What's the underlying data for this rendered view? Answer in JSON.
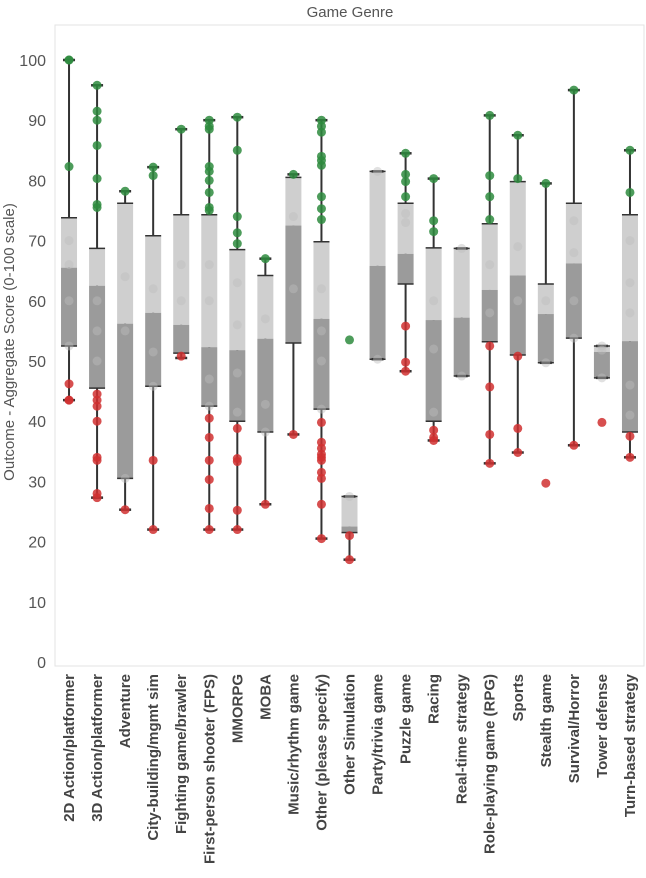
{
  "chart_data": {
    "type": "boxplot",
    "title": "Game Genre",
    "ylabel": "Outcome - Aggregate Score (0-100 scale)",
    "xlabel": "",
    "ylim": [
      -1,
      105
    ],
    "yticks": [
      0,
      10,
      20,
      30,
      40,
      50,
      60,
      70,
      80,
      90,
      100
    ],
    "grid": false,
    "colors": {
      "box_lower": "#9b9b9b",
      "box_upper": "#cfcfcf",
      "whisker": "#333333",
      "point_high": "#2e8b3e",
      "point_low": "#d03030",
      "point_mid": "#bdbdbd"
    },
    "categories": [
      {
        "label": "2D Action/platformer",
        "min": 43.5,
        "q1": 52.5,
        "median": 65.5,
        "q3": 73.8,
        "max": 100,
        "points": [
          100,
          100,
          82.3,
          52.5,
          46.2,
          43.5,
          43.5,
          66,
          60,
          70
        ]
      },
      {
        "label": "3D Action/platformer",
        "min": 27.3,
        "q1": 45.5,
        "median": 62.5,
        "q3": 68.7,
        "max": 95.8,
        "points": [
          95.8,
          91.5,
          90,
          85.8,
          80.3,
          76,
          75.5,
          44.5,
          43.5,
          42.5,
          40,
          34,
          33.5,
          28,
          27.3,
          55,
          60,
          50
        ]
      },
      {
        "label": "Adventure",
        "min": 25.3,
        "q1": 30.5,
        "median": 56.2,
        "q3": 76.2,
        "max": 78.2,
        "points": [
          78.2,
          30.5,
          25.3,
          64,
          55
        ]
      },
      {
        "label": "City-building/mgmt sim",
        "min": 22,
        "q1": 45.8,
        "median": 58,
        "q3": 70.8,
        "max": 82.2,
        "points": [
          82.2,
          80.8,
          45.8,
          33.5,
          22,
          62,
          51.5
        ]
      },
      {
        "label": "Fighting game/brawler",
        "min": 50.5,
        "q1": 51.3,
        "median": 56,
        "q3": 74.3,
        "max": 88.5,
        "points": [
          88.5,
          50.8,
          60,
          66
        ]
      },
      {
        "label": "First-person shooter (FPS)",
        "min": 22,
        "q1": 42.5,
        "median": 52.3,
        "q3": 74.3,
        "max": 90,
        "points": [
          90,
          89,
          88.5,
          82.3,
          81.5,
          80,
          78,
          75.5,
          75,
          42.5,
          40.5,
          37.3,
          33.5,
          30.3,
          25.5,
          22,
          47,
          60,
          66
        ]
      },
      {
        "label": "MMORPG",
        "min": 22,
        "q1": 40,
        "median": 51.8,
        "q3": 68.5,
        "max": 90.5,
        "points": [
          90.5,
          85,
          74,
          71.3,
          69.5,
          41.5,
          38.8,
          33.8,
          33.3,
          25.2,
          22,
          48,
          56,
          63
        ]
      },
      {
        "label": "MOBA",
        "min": 26.2,
        "q1": 38.2,
        "median": 53.7,
        "q3": 64.2,
        "max": 67,
        "points": [
          67,
          42.8,
          38.2,
          26.2,
          57
        ]
      },
      {
        "label": "Music/rhythm game",
        "min": 37.8,
        "q1": 53,
        "median": 72.5,
        "q3": 80.5,
        "max": 81,
        "points": [
          81,
          37.8,
          62,
          74
        ]
      },
      {
        "label": "Other (please specify)",
        "min": 20.5,
        "q1": 42,
        "median": 57,
        "q3": 69.8,
        "max": 90,
        "points": [
          90,
          89,
          88,
          84,
          83.3,
          82.5,
          77.3,
          75.3,
          73.5,
          42,
          39.8,
          36.5,
          35.5,
          34.5,
          34,
          33.5,
          31.5,
          30.5,
          26.2,
          20.5,
          50,
          62,
          55
        ]
      },
      {
        "label": "Other Simulation",
        "min": 17,
        "q1": 21.5,
        "median": 22.5,
        "q3": 27.5,
        "max": 27.5,
        "points": [
          53.5,
          27.5,
          21,
          17
        ]
      },
      {
        "label": "Party/trivia game",
        "min": 50.3,
        "q1": 50.3,
        "median": 65.8,
        "q3": 81.5,
        "max": 81.5,
        "points": [
          81.5,
          50.3
        ]
      },
      {
        "label": "Puzzle game",
        "min": 48.3,
        "q1": 62.8,
        "median": 67.8,
        "q3": 76.2,
        "max": 84.5,
        "points": [
          84.5,
          81,
          79.8,
          77.3,
          74.5,
          55.8,
          49.8,
          48.3,
          73
        ]
      },
      {
        "label": "Racing",
        "min": 36.8,
        "q1": 40,
        "median": 56.8,
        "q3": 68.8,
        "max": 80.3,
        "points": [
          80.3,
          73.3,
          71.5,
          38.5,
          37.3,
          36.8,
          41.5,
          60,
          52
        ]
      },
      {
        "label": "Real-time strategy",
        "min": 47.5,
        "q1": 47.5,
        "median": 57.2,
        "q3": 68.7,
        "max": 68.7,
        "points": [
          68.7,
          47.5
        ]
      },
      {
        "label": "Role-playing game (RPG)",
        "min": 33,
        "q1": 53.2,
        "median": 61.8,
        "q3": 72.8,
        "max": 90.8,
        "points": [
          90.8,
          80.8,
          77.3,
          73.5,
          52.5,
          45.7,
          37.8,
          33,
          58,
          66
        ]
      },
      {
        "label": "Sports",
        "min": 34.8,
        "q1": 51,
        "median": 64.2,
        "q3": 79.8,
        "max": 87.5,
        "points": [
          87.5,
          80.3,
          50.8,
          38.8,
          34.8,
          60,
          69
        ]
      },
      {
        "label": "Stealth game",
        "min": 49.7,
        "q1": 49.7,
        "median": 57.8,
        "q3": 62.8,
        "max": 79.5,
        "points": [
          79.5,
          49.7,
          29.7,
          60
        ]
      },
      {
        "label": "Survival/Horror",
        "min": 36,
        "q1": 53.8,
        "median": 66.2,
        "q3": 76.2,
        "max": 95,
        "points": [
          95,
          73.3,
          53.8,
          36,
          60,
          68
        ]
      },
      {
        "label": "Tower defense",
        "min": 47.2,
        "q1": 47.2,
        "median": 51.5,
        "q3": 52.5,
        "max": 52.5,
        "points": [
          52.5,
          51.8,
          47.2,
          39.8
        ]
      },
      {
        "label": "Turn-based strategy",
        "min": 34,
        "q1": 38.2,
        "median": 53.3,
        "q3": 74.3,
        "max": 85,
        "points": [
          85,
          78,
          46,
          41,
          37.5,
          34,
          63,
          70,
          58
        ]
      }
    ]
  }
}
